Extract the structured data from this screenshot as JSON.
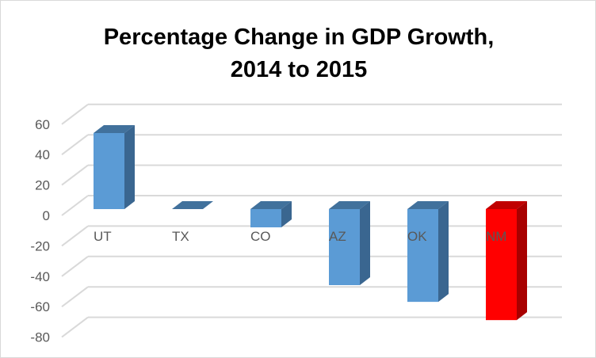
{
  "chart_data": {
    "type": "bar",
    "title": "Percentage Change in GDP Growth,",
    "subtitle": "2014 to 2015",
    "xlabel": "",
    "ylabel": "",
    "categories": [
      "UT",
      "TX",
      "CO",
      "AZ",
      "OK",
      "NM"
    ],
    "values": [
      50,
      0,
      -12,
      -50,
      -61,
      -73
    ],
    "ylim": [
      -80,
      60
    ],
    "yticks": [
      "60",
      "40",
      "20",
      "0",
      "-20",
      "-40",
      "-60",
      "-80"
    ],
    "ytick_values": [
      60,
      40,
      20,
      0,
      -20,
      -40,
      -60,
      -80
    ],
    "grid": true,
    "legend": "none",
    "style": "3d-column",
    "colors": {
      "bar": "#5b9bd5",
      "bar_side": "#3a6690",
      "bar_top": "#41719c",
      "highlight": "#ff0000",
      "highlight_side": "#a80000",
      "highlight_top": "#c00000",
      "grid": "#d9d9d9"
    },
    "highlight_category": "NM"
  }
}
